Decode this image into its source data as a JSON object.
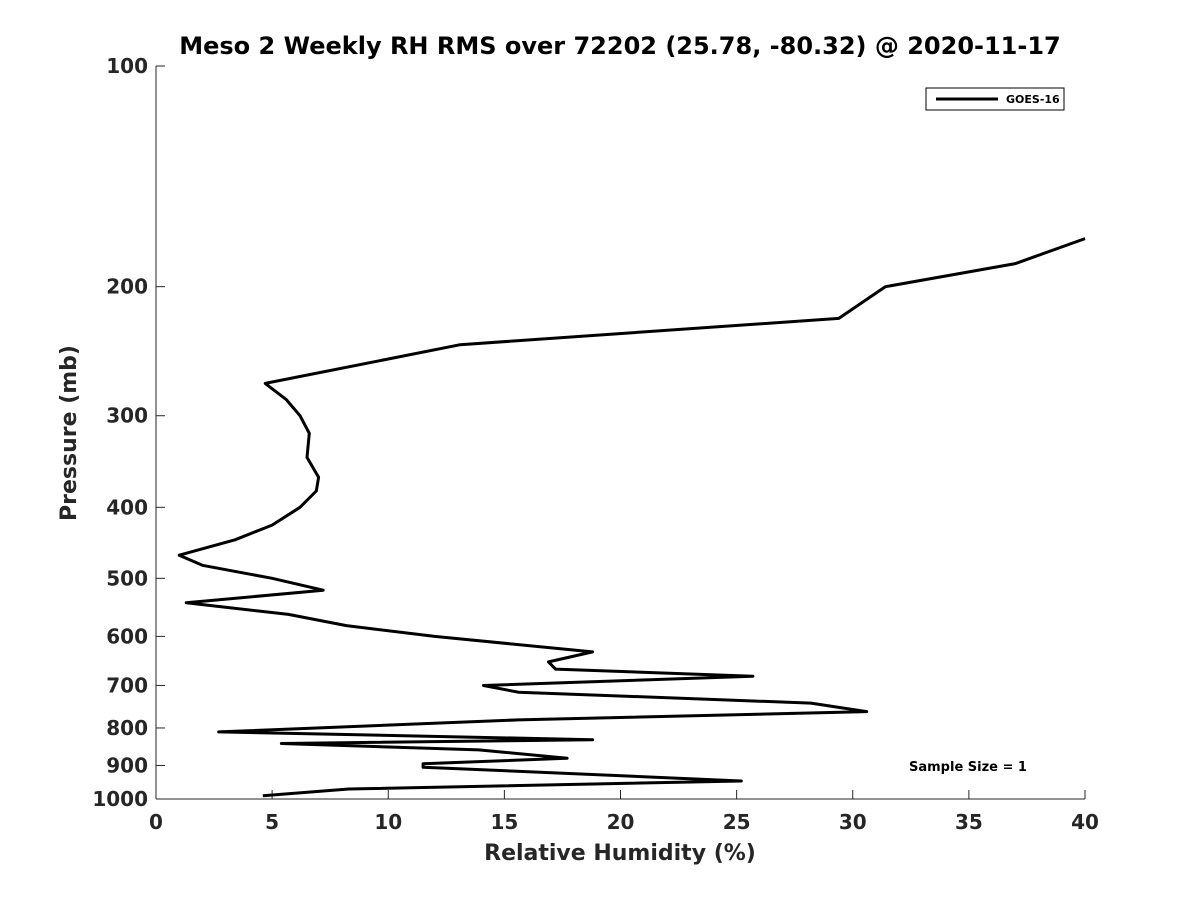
{
  "chart_data": {
    "type": "line",
    "title": "Meso 2 Weekly RH RMS over 72202 (25.78, -80.32) @ 2020-11-17",
    "xlabel": "Relative Humidity (%)",
    "ylabel": "Pressure (mb)",
    "xlim": [
      0,
      40
    ],
    "ylim": [
      100,
      1000
    ],
    "yscale": "log",
    "y_reversed": true,
    "grid": false,
    "x_ticks": [
      0,
      5,
      10,
      15,
      20,
      25,
      30,
      35,
      40
    ],
    "y_ticks": [
      100,
      200,
      300,
      400,
      500,
      600,
      700,
      800,
      900,
      1000
    ],
    "legend": {
      "position": "top-right",
      "entries": [
        "GOES-16"
      ]
    },
    "annotation": "Sample Size = 1",
    "series": [
      {
        "name": "GOES-16",
        "color": "#000000",
        "points": [
          [
            40.0,
            172
          ],
          [
            37.0,
            186
          ],
          [
            31.4,
            200
          ],
          [
            29.4,
            221
          ],
          [
            13.1,
            240
          ],
          [
            4.7,
            271
          ],
          [
            5.6,
            285
          ],
          [
            6.2,
            300
          ],
          [
            6.6,
            317
          ],
          [
            6.5,
            342
          ],
          [
            7.0,
            364
          ],
          [
            6.9,
            380
          ],
          [
            6.2,
            400
          ],
          [
            5.0,
            423
          ],
          [
            3.4,
            443
          ],
          [
            1.0,
            465
          ],
          [
            2.0,
            480
          ],
          [
            5.0,
            500
          ],
          [
            7.2,
            519
          ],
          [
            1.3,
            540
          ],
          [
            5.7,
            560
          ],
          [
            8.2,
            580
          ],
          [
            12.0,
            600
          ],
          [
            18.8,
            630
          ],
          [
            16.9,
            650
          ],
          [
            17.2,
            665
          ],
          [
            25.7,
            680
          ],
          [
            14.1,
            700
          ],
          [
            15.6,
            715
          ],
          [
            28.2,
            740
          ],
          [
            30.6,
            760
          ],
          [
            15.6,
            780
          ],
          [
            2.7,
            810
          ],
          [
            18.8,
            830
          ],
          [
            5.4,
            840
          ],
          [
            13.9,
            857
          ],
          [
            17.7,
            880
          ],
          [
            11.5,
            895
          ],
          [
            11.5,
            905
          ],
          [
            25.2,
            945
          ],
          [
            8.3,
            969
          ],
          [
            4.6,
            990
          ]
        ]
      }
    ]
  }
}
